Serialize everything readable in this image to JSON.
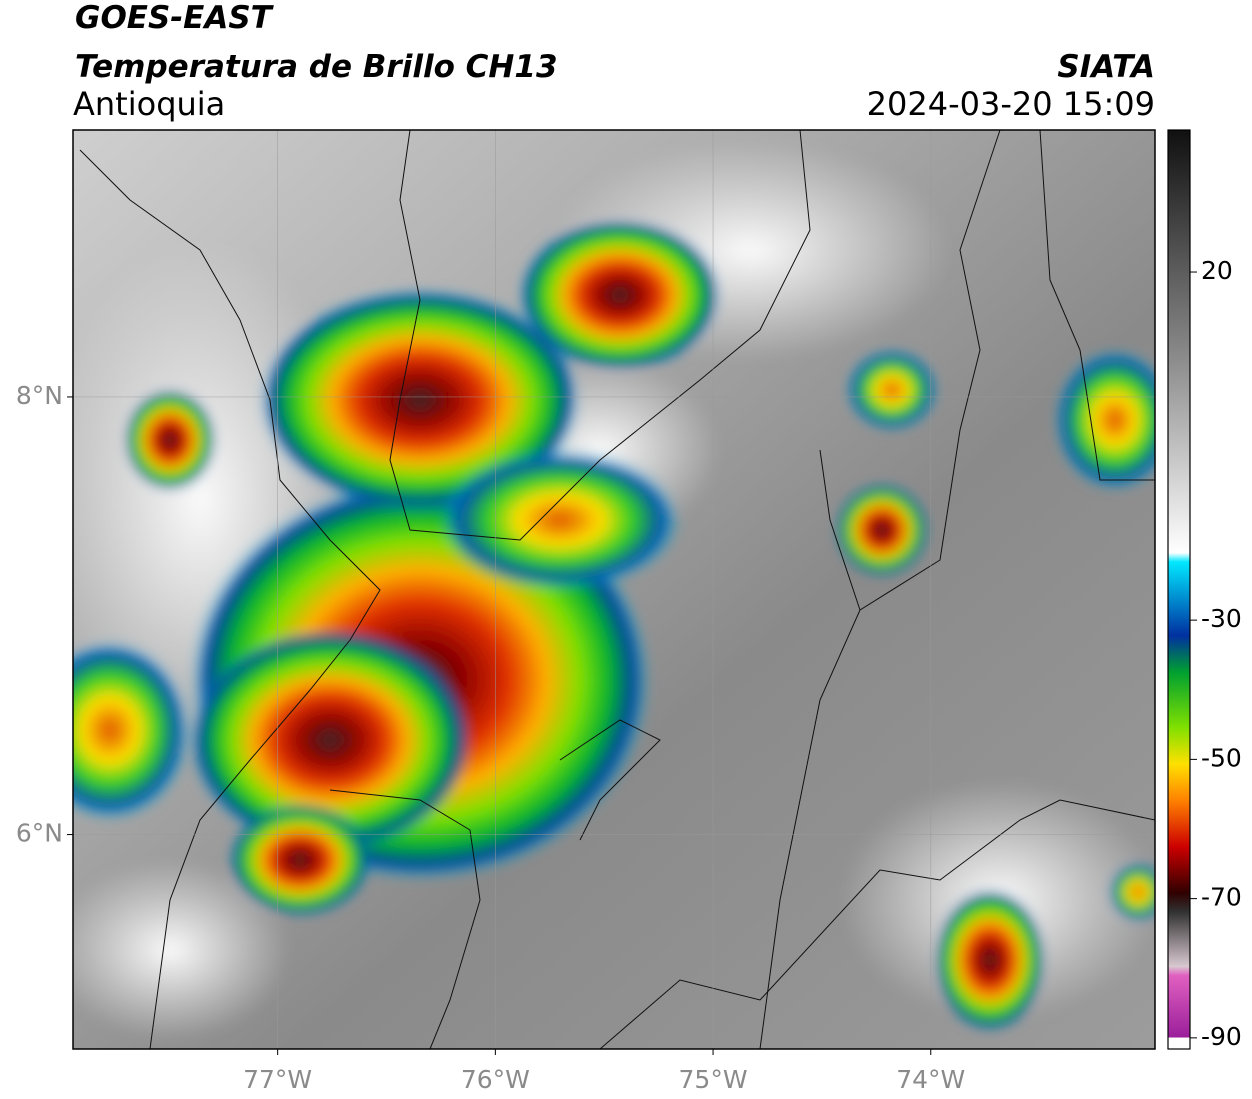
{
  "header": {
    "title": "GOES-EAST",
    "subtitle": "Temperatura de Brillo CH13",
    "region": "Antioquia",
    "source": "SIATA",
    "datetime": "2024-03-20 15:09"
  },
  "map": {
    "xlim": [
      -77.94,
      -72.97
    ],
    "ylim": [
      5.02,
      9.22
    ],
    "xticks": [
      {
        "value": -77,
        "label": "77°W"
      },
      {
        "value": -76,
        "label": "76°W"
      },
      {
        "value": -75,
        "label": "75°W"
      },
      {
        "value": -74,
        "label": "74°W"
      }
    ],
    "yticks": [
      {
        "value": 8,
        "label": "8°N"
      },
      {
        "value": 6,
        "label": "6°N"
      }
    ],
    "grid": true
  },
  "colorbar": {
    "lim": [
      -91.6,
      40.4
    ],
    "ticks": [
      20,
      -30,
      -50,
      -70,
      -90
    ]
  }
}
